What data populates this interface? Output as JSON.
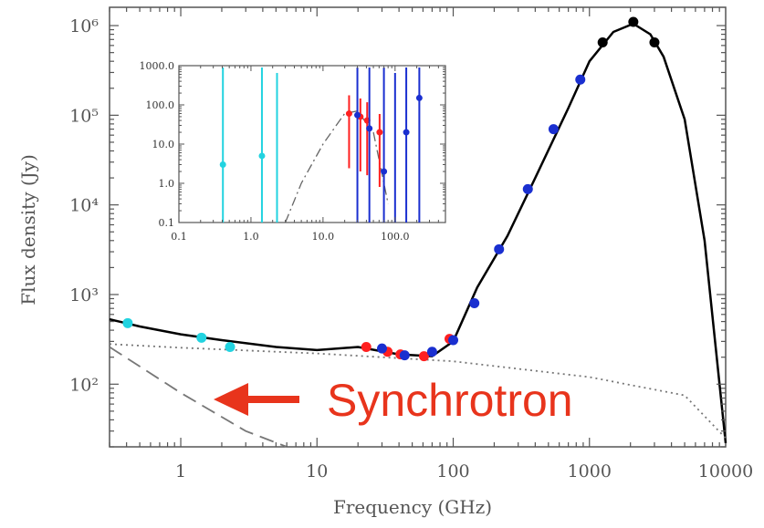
{
  "chart_data": [
    {
      "type": "scatter",
      "xscale": "log",
      "yscale": "log",
      "xlabel": "Frequency (GHz)",
      "ylabel": "Flux density (Jy)",
      "xlim": [
        0.3,
        10000
      ],
      "ylim": [
        20,
        1600000
      ],
      "x_tick_labels": [
        "1",
        "10",
        "100",
        "1000",
        "10000"
      ],
      "x_tick_values": [
        1,
        10,
        100,
        1000,
        10000
      ],
      "y_tick_labels": [
        "10²",
        "10³",
        "10⁴",
        "10⁵",
        "10⁶"
      ],
      "y_tick_values": [
        100,
        1000,
        10000,
        100000,
        1000000
      ],
      "series": [
        {
          "color": "#22d3e0",
          "x": [
            0.408,
            1.42,
            2.3
          ],
          "y": [
            480,
            330,
            260
          ]
        },
        {
          "color": "#ff2020",
          "x": [
            23,
            33,
            41,
            61,
            94
          ],
          "y": [
            260,
            230,
            215,
            205,
            320
          ]
        },
        {
          "color": "#1a2fd0",
          "x": [
            30,
            44,
            70,
            100,
            143,
            217,
            353,
            545,
            857
          ],
          "y": [
            250,
            210,
            230,
            310,
            800,
            3200,
            15000,
            70000,
            250000
          ]
        },
        {
          "color": "#000000",
          "x": [
            1250,
            2100,
            3000
          ],
          "y": [
            650000,
            1100000,
            650000
          ]
        }
      ],
      "curves": [
        {
          "style": "solid",
          "color": "#000000",
          "x": [
            0.3,
            0.5,
            1,
            2,
            5,
            10,
            20,
            40,
            70,
            100,
            150,
            250,
            400,
            700,
            1000,
            1500,
            2100,
            2800,
            3500,
            5000,
            7000,
            10000
          ],
          "y": [
            530,
            440,
            360,
            310,
            260,
            240,
            260,
            215,
            205,
            300,
            1200,
            4500,
            20000,
            120000,
            400000,
            850000,
            1050000,
            800000,
            450000,
            90000,
            4000,
            22
          ]
        },
        {
          "style": "dotted",
          "color": "#777777",
          "x": [
            0.3,
            1,
            10,
            100,
            1000,
            5000,
            10000
          ],
          "y": [
            280,
            255,
            220,
            180,
            120,
            75,
            25
          ]
        },
        {
          "style": "dashed",
          "color": "#777777",
          "x": [
            0.3,
            1,
            3,
            6
          ],
          "y": [
            260,
            80,
            30,
            18
          ]
        }
      ],
      "annotations": [
        {
          "text": "Synchrotron",
          "arrow": "left",
          "color": "#e8341c"
        }
      ]
    },
    {
      "type": "scatter",
      "xscale": "log",
      "yscale": "log",
      "xlim": [
        0.1,
        500
      ],
      "ylim": [
        0.1,
        1000
      ],
      "x_tick_labels": [
        "0.1",
        "1.0",
        "10.0",
        "100.0"
      ],
      "x_tick_values": [
        0.1,
        1,
        10,
        100
      ],
      "y_tick_labels": [
        "0.1",
        "1.0",
        "10.0",
        "100.0",
        "1000.0"
      ],
      "y_tick_values": [
        0.1,
        1,
        10,
        100,
        1000
      ],
      "series": [
        {
          "color": "#22d3e0",
          "x": [
            0.408,
            1.42,
            2.3
          ],
          "y": [
            3,
            5,
            null
          ]
        },
        {
          "color": "#ff2020",
          "x": [
            23,
            33,
            41,
            61
          ],
          "y": [
            60,
            50,
            40,
            20
          ]
        },
        {
          "color": "#1a2fd0",
          "x": [
            30,
            44,
            70,
            100,
            143,
            217
          ],
          "y": [
            55,
            25,
            2,
            null,
            20,
            150
          ]
        }
      ],
      "curves": [
        {
          "style": "dashdot",
          "color": "#666666",
          "x": [
            3,
            5,
            10,
            20,
            30,
            50,
            80
          ],
          "y": [
            0.1,
            1,
            10,
            60,
            70,
            20,
            0.3
          ]
        }
      ]
    }
  ]
}
